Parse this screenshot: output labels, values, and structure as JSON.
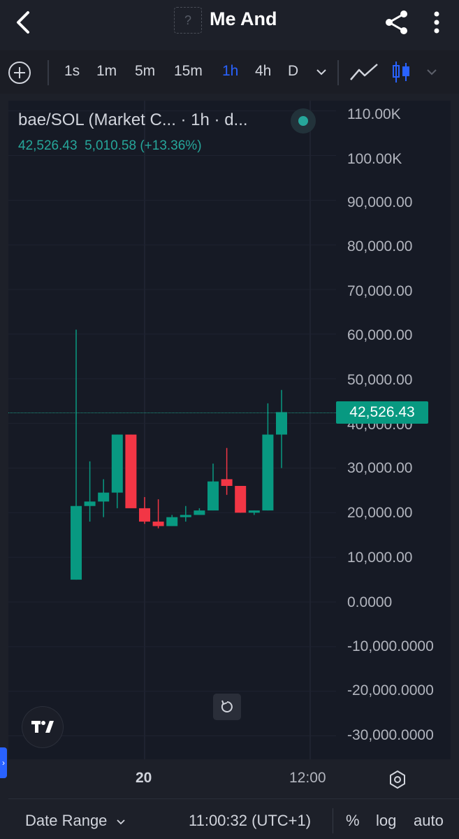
{
  "header": {
    "title": "Me And",
    "token_placeholder": "?",
    "back_icon": "chevron-left-icon",
    "share_icon": "share-icon",
    "more_icon": "more-vertical-icon"
  },
  "toolbar": {
    "intervals": [
      {
        "label": "1s",
        "active": false
      },
      {
        "label": "1m",
        "active": false
      },
      {
        "label": "5m",
        "active": false
      },
      {
        "label": "15m",
        "active": false
      },
      {
        "label": "1h",
        "active": true
      },
      {
        "label": "4h",
        "active": false
      },
      {
        "label": "D",
        "active": false
      }
    ]
  },
  "legend": {
    "name": "bae/SOL (Market C... · 1h · d...",
    "value": "42,526.43",
    "change": "5,010.58 (+13.36%)"
  },
  "price_tag": "42,526.43",
  "bottom": {
    "date_range": "Date Range",
    "time": "11:00:32 (UTC+1)",
    "percent": "%",
    "log": "log",
    "auto": "auto"
  },
  "chart_data": {
    "type": "candlestick",
    "interval": "1h",
    "y_axis_labels": [
      "110.00K",
      "100.00K",
      "90,000.00",
      "80,000.00",
      "70,000.00",
      "60,000.00",
      "50,000.00",
      "40,000.00",
      "30,000.00",
      "20,000.00",
      "10,000.00",
      "0.0000",
      "-10,000.0000",
      "-20,000.0000",
      "-30,000.0000"
    ],
    "ylim": [
      -30000,
      110000
    ],
    "x_axis_labels": [
      "20",
      "12:00"
    ],
    "last_price": 42526.43,
    "candles": [
      {
        "o": 5000,
        "h": 61000,
        "l": 5000,
        "c": 21500
      },
      {
        "o": 21500,
        "h": 31500,
        "l": 18000,
        "c": 22500
      },
      {
        "o": 22500,
        "h": 27500,
        "l": 19000,
        "c": 24500
      },
      {
        "o": 24500,
        "h": 37500,
        "l": 21000,
        "c": 37500
      },
      {
        "o": 37500,
        "h": 37500,
        "l": 22000,
        "c": 21000
      },
      {
        "o": 21000,
        "h": 23500,
        "l": 17500,
        "c": 18000
      },
      {
        "o": 18000,
        "h": 23000,
        "l": 16500,
        "c": 17000
      },
      {
        "o": 17000,
        "h": 19500,
        "l": 17000,
        "c": 19000
      },
      {
        "o": 19000,
        "h": 21500,
        "l": 18000,
        "c": 19500
      },
      {
        "o": 19500,
        "h": 21000,
        "l": 19500,
        "c": 20500
      },
      {
        "o": 20500,
        "h": 31000,
        "l": 20500,
        "c": 27000
      },
      {
        "o": 27500,
        "h": 34500,
        "l": 24000,
        "c": 26000
      },
      {
        "o": 26000,
        "h": 26000,
        "l": 20000,
        "c": 20000
      },
      {
        "o": 20000,
        "h": 20500,
        "l": 19500,
        "c": 20500
      },
      {
        "o": 20500,
        "h": 44500,
        "l": 20500,
        "c": 37500
      },
      {
        "o": 37500,
        "h": 47500,
        "l": 30000,
        "c": 42526.43
      }
    ]
  }
}
